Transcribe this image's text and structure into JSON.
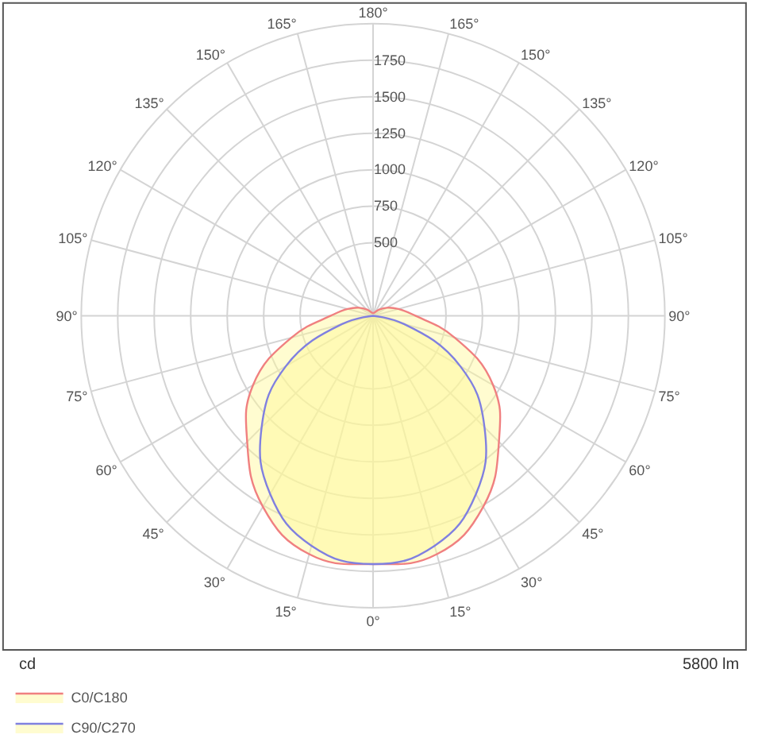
{
  "chart_data": {
    "type": "radar",
    "categories": [
      "180°",
      "165°",
      "150°",
      "135°",
      "120°",
      "105°",
      "90°",
      "75°",
      "60°",
      "45°",
      "30°",
      "15°",
      "0°",
      "15°",
      "30°",
      "45°",
      "60°",
      "75°",
      "90°",
      "105°",
      "120°",
      "135°",
      "150°",
      "165°"
    ],
    "series": [
      {
        "name": "C0/C180",
        "color": "#f08080",
        "values": [
          20,
          20,
          30,
          60,
          110,
          180,
          290,
          580,
          950,
          1220,
          1510,
          1690,
          1700,
          1690,
          1510,
          1220,
          950,
          580,
          290,
          180,
          110,
          60,
          30,
          20
        ]
      },
      {
        "name": "C90/C270",
        "color": "#8080e0",
        "values": [
          0,
          0,
          0,
          0,
          0,
          0,
          0,
          220,
          690,
          1080,
          1410,
          1630,
          1700,
          1630,
          1410,
          1080,
          690,
          220,
          0,
          0,
          0,
          0,
          0,
          0
        ]
      }
    ],
    "ylim": [
      0,
      2000
    ],
    "yticks": [
      500,
      750,
      1000,
      1250,
      1500,
      1750
    ],
    "ylabel": "cd",
    "annotations": [
      "5800 lm"
    ],
    "grid": true,
    "legend": "bottom left"
  }
}
